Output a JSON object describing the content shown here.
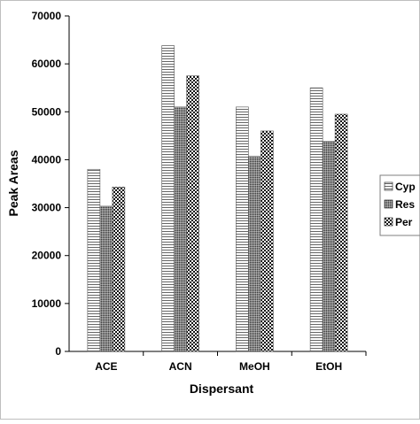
{
  "chart_data": {
    "type": "bar",
    "xlabel": "Dispersant",
    "ylabel": "Peak Areas",
    "categories": [
      "ACE",
      "ACN",
      "MeOH",
      "EtOH"
    ],
    "series": [
      {
        "name": "Cyp",
        "values": [
          38000,
          63800,
          51000,
          55000
        ],
        "pattern": "horizontal-lines"
      },
      {
        "name": "Res",
        "values": [
          30300,
          51000,
          40700,
          43800
        ],
        "pattern": "dense-gray"
      },
      {
        "name": "Per",
        "values": [
          34300,
          57500,
          46000,
          49500
        ],
        "pattern": "checker-dots"
      }
    ],
    "ylim": [
      0,
      70000
    ],
    "yticks": [
      "0",
      "10000",
      "20000",
      "30000",
      "40000",
      "50000",
      "60000",
      "70000"
    ],
    "grid": false,
    "legend_position": "right"
  }
}
